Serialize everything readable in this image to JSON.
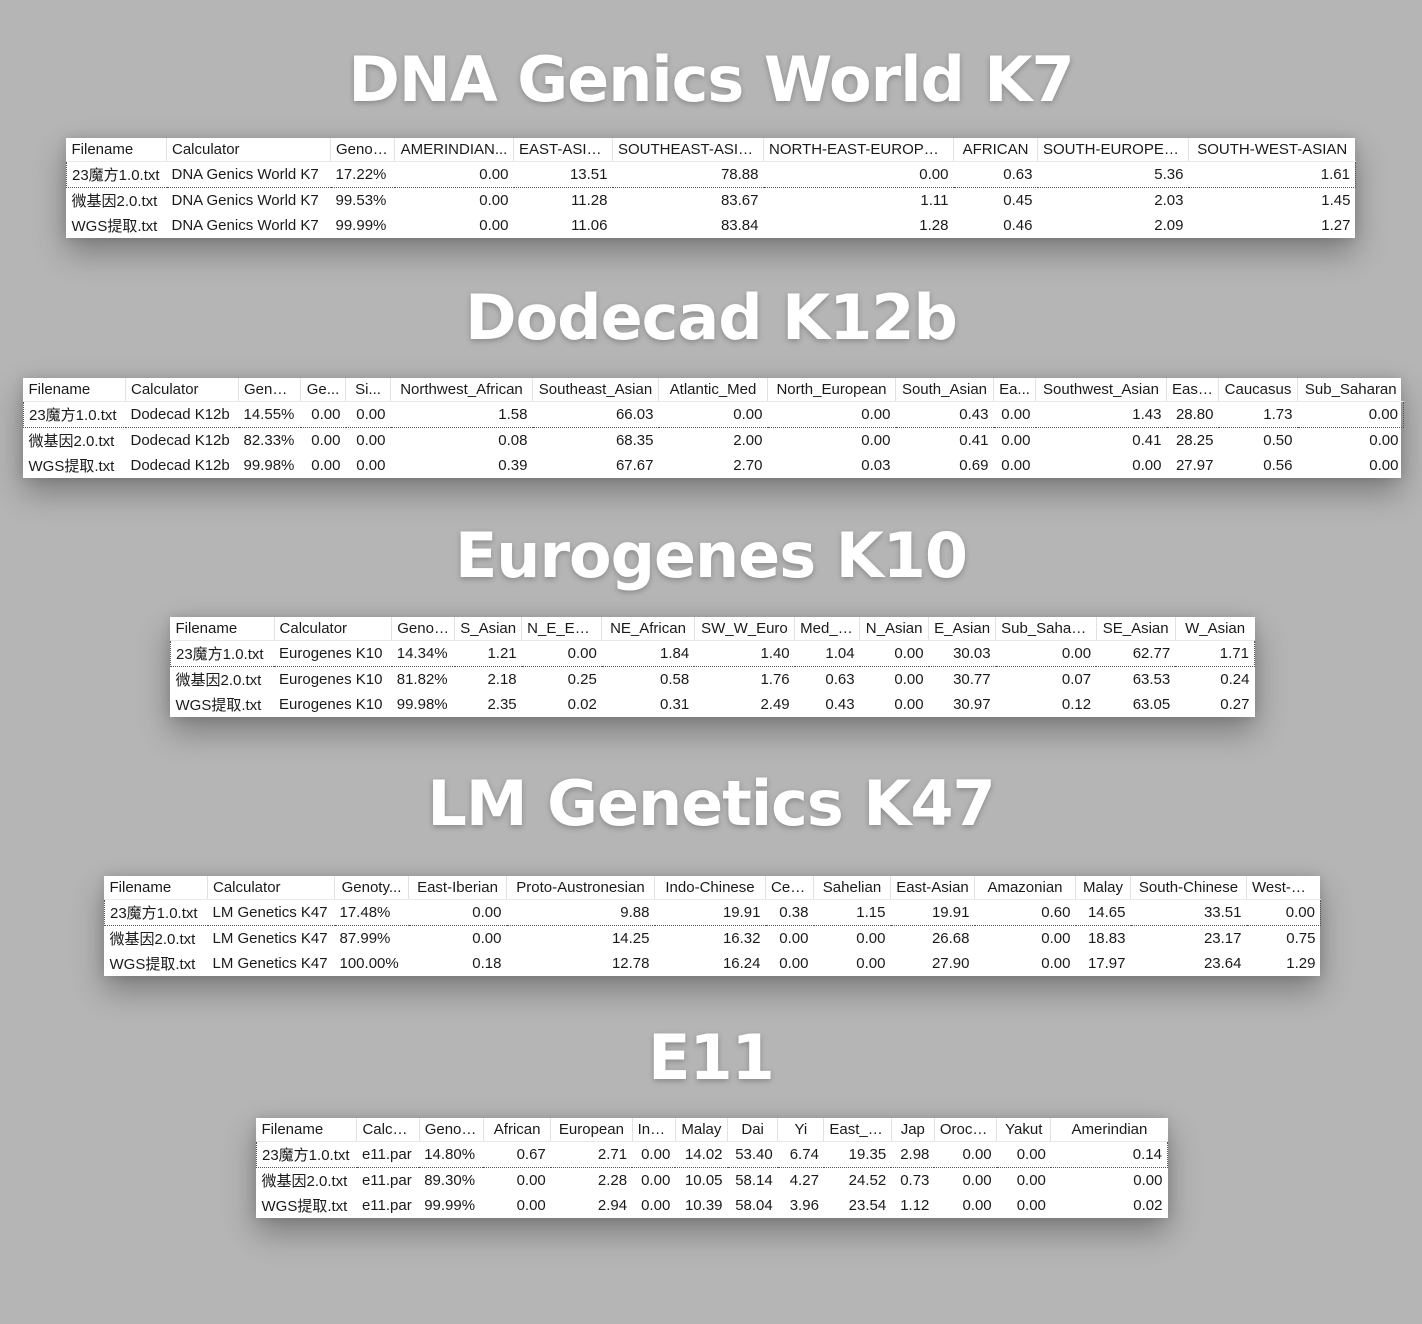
{
  "sections": [
    {
      "title": "DNA Genics World K7",
      "columns": [
        "Filename",
        "Calculator",
        "Genot...",
        "AMERINDIAN...",
        "EAST-ASIAN",
        "SOUTHEAST-ASIAN",
        "NORTH-EAST-EUROPEA...",
        "AFRICAN",
        "SOUTH-EUROPEAN",
        "SOUTH-WEST-ASIAN"
      ],
      "rows": [
        [
          "23魔方1.0.txt",
          "DNA Genics World K7",
          "17.22%",
          "0.00",
          "13.51",
          "78.88",
          "0.00",
          "0.63",
          "5.36",
          "1.61"
        ],
        [
          "微基因2.0.txt",
          "DNA Genics World K7",
          "99.53%",
          "0.00",
          "11.28",
          "83.67",
          "1.11",
          "0.45",
          "2.03",
          "1.45"
        ],
        [
          "WGS提取.txt",
          "DNA Genics World K7",
          "99.99%",
          "0.00",
          "11.06",
          "83.84",
          "1.28",
          "0.46",
          "2.09",
          "1.27"
        ]
      ]
    },
    {
      "title": "Dodecad K12b",
      "columns": [
        "Filename",
        "Calculator",
        "Genot...",
        "Ge...",
        "Si...",
        "Northwest_African",
        "Southeast_Asian",
        "Atlantic_Med",
        "North_European",
        "South_Asian",
        "Ea...",
        "Southwest_Asian",
        "East...",
        "Caucasus",
        "Sub_Saharan"
      ],
      "rows": [
        [
          "23魔方1.0.txt",
          "Dodecad K12b",
          "14.55%",
          "0.00",
          "0.00",
          "1.58",
          "66.03",
          "0.00",
          "0.00",
          "0.43",
          "0.00",
          "1.43",
          "28.80",
          "1.73",
          "0.00"
        ],
        [
          "微基因2.0.txt",
          "Dodecad K12b",
          "82.33%",
          "0.00",
          "0.00",
          "0.08",
          "68.35",
          "2.00",
          "0.00",
          "0.41",
          "0.00",
          "0.41",
          "28.25",
          "0.50",
          "0.00"
        ],
        [
          "WGS提取.txt",
          "Dodecad K12b",
          "99.98%",
          "0.00",
          "0.00",
          "0.39",
          "67.67",
          "2.70",
          "0.03",
          "0.69",
          "0.00",
          "0.00",
          "27.97",
          "0.56",
          "0.00"
        ]
      ]
    },
    {
      "title": "Eurogenes K10",
      "columns": [
        "Filename",
        "Calculator",
        "Genot...",
        "S_Asian",
        "N_E_Euro",
        "NE_African",
        "SW_W_Euro",
        "Med_ME",
        "N_Asian",
        "E_Asian",
        "Sub_Saharan",
        "SE_Asian",
        "W_Asian"
      ],
      "rows": [
        [
          "23魔方1.0.txt",
          "Eurogenes K10",
          "14.34%",
          "1.21",
          "0.00",
          "1.84",
          "1.40",
          "1.04",
          "0.00",
          "30.03",
          "0.00",
          "62.77",
          "1.71"
        ],
        [
          "微基因2.0.txt",
          "Eurogenes K10",
          "81.82%",
          "2.18",
          "0.25",
          "0.58",
          "1.76",
          "0.63",
          "0.00",
          "30.77",
          "0.07",
          "63.53",
          "0.24"
        ],
        [
          "WGS提取.txt",
          "Eurogenes K10",
          "99.98%",
          "2.35",
          "0.02",
          "0.31",
          "2.49",
          "0.43",
          "0.00",
          "30.97",
          "0.12",
          "63.05",
          "0.27"
        ]
      ]
    },
    {
      "title": "LM Genetics K47",
      "columns": [
        "Filename",
        "Calculator",
        "Genoty...",
        "East-Iberian",
        "Proto-Austronesian",
        "Indo-Chinese",
        "Celtic",
        "Sahelian",
        "East-Asian",
        "Amazonian",
        "Malay",
        "South-Chinese",
        "West-Med"
      ],
      "rows": [
        [
          "23魔方1.0.txt",
          "LM Genetics K47",
          "17.48%",
          "0.00",
          "9.88",
          "19.91",
          "0.38",
          "1.15",
          "19.91",
          "0.60",
          "14.65",
          "33.51",
          "0.00"
        ],
        [
          "微基因2.0.txt",
          "LM Genetics K47",
          "87.99%",
          "0.00",
          "14.25",
          "16.32",
          "0.00",
          "0.00",
          "26.68",
          "0.00",
          "18.83",
          "23.17",
          "0.75"
        ],
        [
          "WGS提取.txt",
          "LM Genetics K47",
          "100.00%",
          "0.18",
          "12.78",
          "16.24",
          "0.00",
          "0.00",
          "27.90",
          "0.00",
          "17.97",
          "23.64",
          "1.29"
        ]
      ]
    },
    {
      "title": "E11",
      "columns": [
        "Filename",
        "Calcul...",
        "Genot...",
        "African",
        "European",
        "India",
        "Malay",
        "Dai",
        "Yi",
        "East_Asian",
        "Jap",
        "Orochun",
        "Yakut",
        "Amerindian"
      ],
      "rows": [
        [
          "23魔方1.0.txt",
          "e11.par",
          "14.80%",
          "0.67",
          "2.71",
          "0.00",
          "14.02",
          "53.40",
          "6.74",
          "19.35",
          "2.98",
          "0.00",
          "0.00",
          "0.14"
        ],
        [
          "微基因2.0.txt",
          "e11.par",
          "89.30%",
          "0.00",
          "2.28",
          "0.00",
          "10.05",
          "58.14",
          "4.27",
          "24.52",
          "0.73",
          "0.00",
          "0.00",
          "0.00"
        ],
        [
          "WGS提取.txt",
          "e11.par",
          "99.99%",
          "0.00",
          "2.94",
          "0.00",
          "10.39",
          "58.04",
          "3.96",
          "23.54",
          "1.12",
          "0.00",
          "0.00",
          "0.02"
        ]
      ]
    }
  ]
}
